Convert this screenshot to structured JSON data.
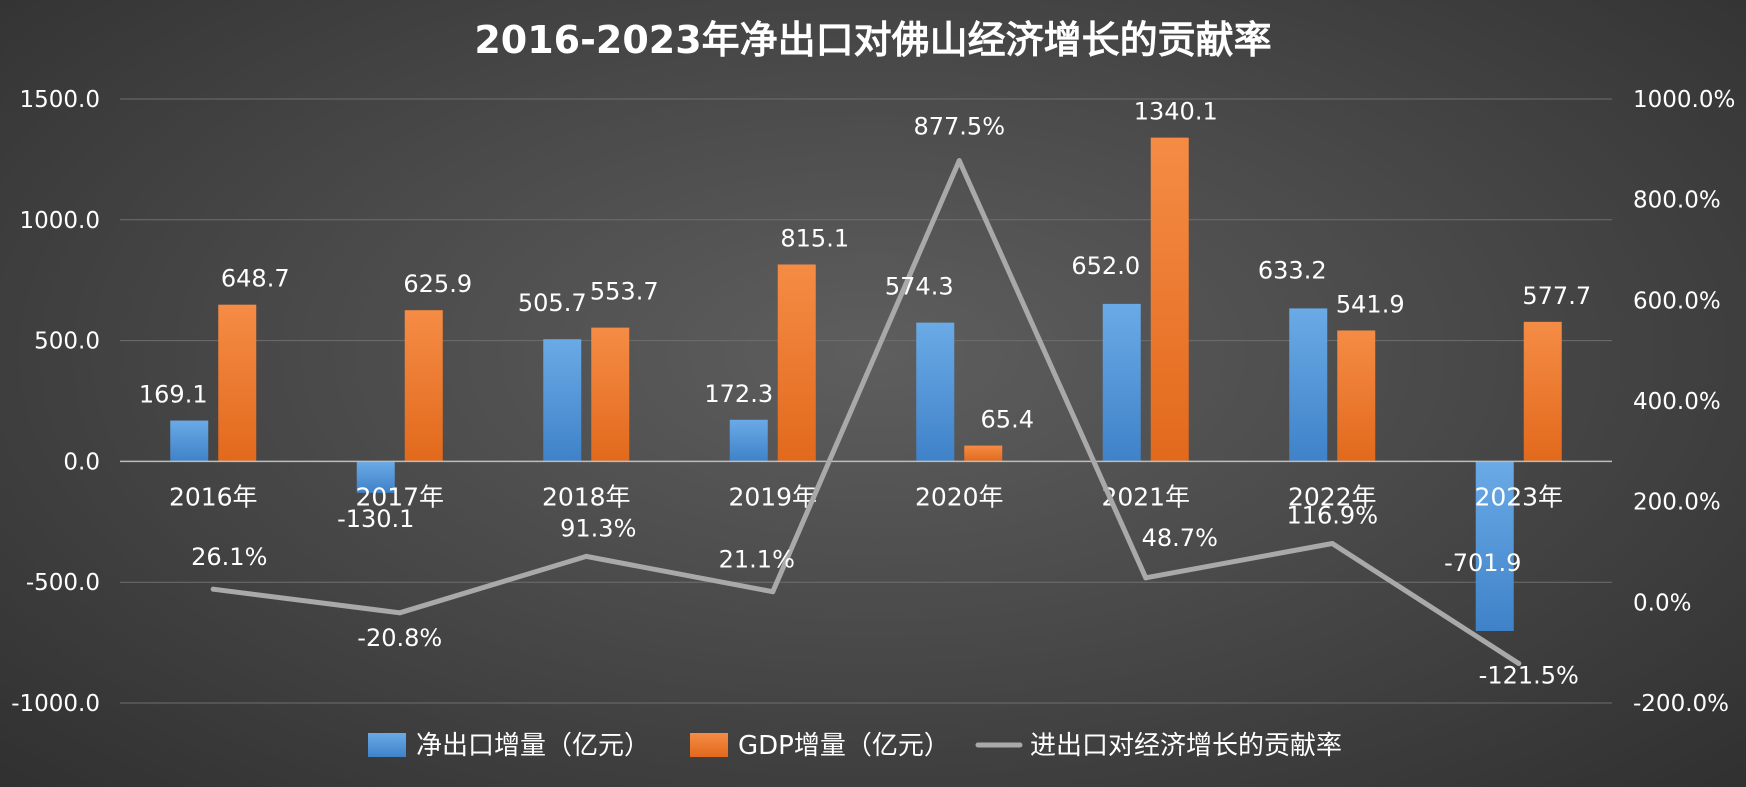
{
  "chart_data": {
    "type": "bar",
    "title": "2016-2023年净出口对佛山经济增长的贡献率",
    "categories": [
      "2016年",
      "2017年",
      "2018年",
      "2019年",
      "2020年",
      "2021年",
      "2022年",
      "2023年"
    ],
    "series": [
      {
        "name": "净出口增量（亿元）",
        "type": "bar",
        "axis": "left",
        "color": "#4e94d8",
        "values": [
          169.1,
          -130.1,
          505.7,
          172.3,
          574.3,
          652.0,
          633.2,
          -701.9
        ],
        "labels": [
          "169.1",
          "-130.1",
          "505.7",
          "172.3",
          "574.3",
          "652.0",
          "633.2",
          "-701.9"
        ]
      },
      {
        "name": "GDP增量（亿元）",
        "type": "bar",
        "axis": "left",
        "color": "#ee7424",
        "values": [
          648.7,
          625.9,
          553.7,
          815.1,
          65.4,
          1340.1,
          541.9,
          577.7
        ],
        "labels": [
          "648.7",
          "625.9",
          "553.7",
          "815.1",
          "65.4",
          "1340.1",
          "541.9",
          "577.7"
        ]
      },
      {
        "name": "进出口对经济增长的贡献率",
        "type": "line",
        "axis": "right",
        "color": "#a9a9a9",
        "values": [
          26.1,
          -20.8,
          91.3,
          21.1,
          877.5,
          48.7,
          116.9,
          -121.5
        ],
        "labels": [
          "26.1%",
          "-20.8%",
          "91.3%",
          "21.1%",
          "877.5%",
          "48.7%",
          "116.9%",
          "-121.5%"
        ]
      }
    ],
    "y_left": {
      "ylim": [
        -1000,
        1500
      ],
      "ticks": [
        -1000,
        -500,
        0,
        500,
        1000,
        1500
      ],
      "tick_labels": [
        "-1000.0",
        "-500.0",
        "0.0",
        "500.0",
        "1000.0",
        "1500.0"
      ]
    },
    "y_right": {
      "ylim": [
        -200,
        1000
      ],
      "ticks": [
        -200,
        0,
        200,
        400,
        600,
        800,
        1000
      ],
      "tick_labels": [
        "-200.0%",
        "0.0%",
        "200.0%",
        "400.0%",
        "600.0%",
        "800.0%",
        "1000.0%"
      ]
    },
    "grid": true,
    "legend": "bottom",
    "background": "#4a4a4a"
  }
}
